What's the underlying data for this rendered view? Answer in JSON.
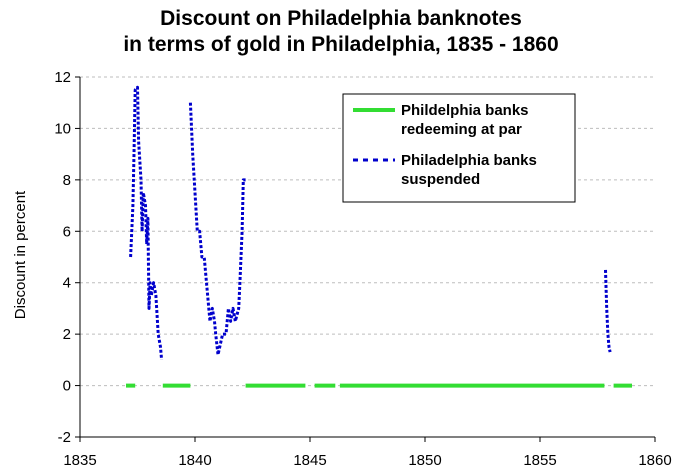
{
  "chart_data": {
    "type": "line",
    "title_line1": "Discount on Philadelphia banknotes",
    "title_line2": "in terms of gold in Philadelphia, 1835 - 1860",
    "xlabel": "",
    "ylabel": "Discount in percent",
    "xlim": [
      1835,
      1860
    ],
    "ylim": [
      -2,
      12
    ],
    "x_ticks": [
      1835,
      1840,
      1845,
      1850,
      1855,
      1860
    ],
    "y_ticks": [
      -2,
      0,
      2,
      4,
      6,
      8,
      10,
      12
    ],
    "grid": "horizontal dashed",
    "legend_position": "top-right",
    "series": [
      {
        "name": "Phildelphia banks redeeming at par",
        "color": "#33dd33",
        "style": "solid",
        "segments": [
          [
            [
              1837.0,
              0
            ],
            [
              1837.4,
              0
            ]
          ],
          [
            [
              1838.6,
              0
            ],
            [
              1839.8,
              0
            ]
          ],
          [
            [
              1842.2,
              0
            ],
            [
              1844.8,
              0
            ]
          ],
          [
            [
              1845.2,
              0
            ],
            [
              1846.1,
              0
            ]
          ],
          [
            [
              1846.3,
              0
            ],
            [
              1857.8,
              0
            ]
          ],
          [
            [
              1858.2,
              0
            ],
            [
              1859.0,
              0
            ]
          ]
        ]
      },
      {
        "name": "Philadelphia banks suspended",
        "color": "#0000cc",
        "style": "dashed",
        "segments": [
          [
            [
              1837.2,
              5.0
            ],
            [
              1837.3,
              7.0
            ],
            [
              1837.35,
              9.0
            ],
            [
              1837.4,
              11.5
            ],
            [
              1837.5,
              11.6
            ],
            [
              1837.55,
              9.5
            ],
            [
              1837.65,
              8.0
            ],
            [
              1837.7,
              6.0
            ],
            [
              1837.75,
              7.5
            ],
            [
              1837.85,
              7.0
            ],
            [
              1837.9,
              5.5
            ],
            [
              1837.95,
              6.5
            ],
            [
              1838.0,
              3.0
            ],
            [
              1838.05,
              4.0
            ],
            [
              1838.1,
              3.5
            ],
            [
              1838.2,
              4.0
            ],
            [
              1838.3,
              3.5
            ],
            [
              1838.4,
              2.0
            ],
            [
              1838.5,
              1.5
            ],
            [
              1838.55,
              1.0
            ]
          ],
          [
            [
              1839.8,
              11.0
            ],
            [
              1839.9,
              9.0
            ],
            [
              1840.0,
              7.5
            ],
            [
              1840.1,
              6.0
            ],
            [
              1840.2,
              6.0
            ],
            [
              1840.3,
              5.0
            ],
            [
              1840.4,
              5.0
            ],
            [
              1840.5,
              4.0
            ],
            [
              1840.6,
              3.0
            ],
            [
              1840.65,
              2.5
            ],
            [
              1840.75,
              3.0
            ],
            [
              1840.85,
              2.5
            ],
            [
              1840.9,
              2.0
            ],
            [
              1841.0,
              1.2
            ],
            [
              1841.2,
              2.0
            ],
            [
              1841.35,
              2.0
            ],
            [
              1841.45,
              3.0
            ],
            [
              1841.55,
              2.5
            ],
            [
              1841.65,
              3.0
            ],
            [
              1841.75,
              2.5
            ],
            [
              1841.9,
              3.0
            ],
            [
              1841.95,
              4.0
            ],
            [
              1842.05,
              6.0
            ],
            [
              1842.1,
              8.0
            ],
            [
              1842.2,
              8.0
            ]
          ],
          [
            [
              1857.85,
              4.5
            ],
            [
              1857.9,
              3.0
            ],
            [
              1857.95,
              2.0
            ],
            [
              1858.0,
              1.5
            ],
            [
              1858.05,
              1.3
            ]
          ]
        ]
      }
    ]
  }
}
